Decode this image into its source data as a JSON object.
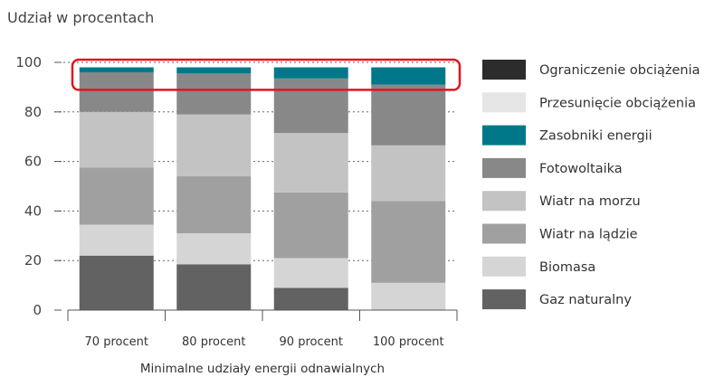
{
  "chart_data": {
    "type": "bar",
    "stacked": true,
    "title": "Udział w procentach",
    "xlabel": "Minimalne udziały energii odnawialnych",
    "ylabel": "",
    "ylim": [
      0,
      100
    ],
    "yticks": [
      0,
      20,
      40,
      60,
      80,
      100
    ],
    "grid": true,
    "legend": "right",
    "categories": [
      "70 procent",
      "80 procent",
      "90 procent",
      "100 procent"
    ],
    "series": [
      {
        "name": "Gaz naturalny",
        "color": "#626262",
        "values": [
          22,
          18.5,
          9,
          0
        ]
      },
      {
        "name": "Biomasa",
        "color": "#d5d5d5",
        "values": [
          12.5,
          12.5,
          12,
          11
        ]
      },
      {
        "name": "Wiatr na lądzie",
        "color": "#a0a0a0",
        "values": [
          23,
          23,
          26.5,
          33
        ]
      },
      {
        "name": "Wiatr na morzu",
        "color": "#c3c3c3",
        "values": [
          22.5,
          25,
          24,
          22.5
        ]
      },
      {
        "name": "Fotowoltaika",
        "color": "#888888",
        "values": [
          16,
          16.5,
          22,
          24.5
        ]
      },
      {
        "name": "Zasobniki energii",
        "color": "#00788a",
        "values": [
          2,
          2.5,
          4.5,
          7
        ]
      },
      {
        "name": "Przesunięcie obciążenia",
        "color": "#e6e6e6",
        "values": [
          0,
          0,
          0,
          0
        ]
      },
      {
        "name": "Ograniczenie obciążenia",
        "color": "#2c2c2c",
        "values": [
          0,
          0,
          0,
          0
        ]
      }
    ],
    "legend_order": [
      "Ograniczenie obciążenia",
      "Przesunięcie obciążenia",
      "Zasobniki energii",
      "Fotowoltaika",
      "Wiatr na morzu",
      "Wiatr na lądzie",
      "Biomasa",
      "Gaz naturalny"
    ],
    "highlight": {
      "shape": "rounded-rectangle",
      "color": "#e3141b",
      "y_range": [
        90,
        100
      ]
    }
  }
}
